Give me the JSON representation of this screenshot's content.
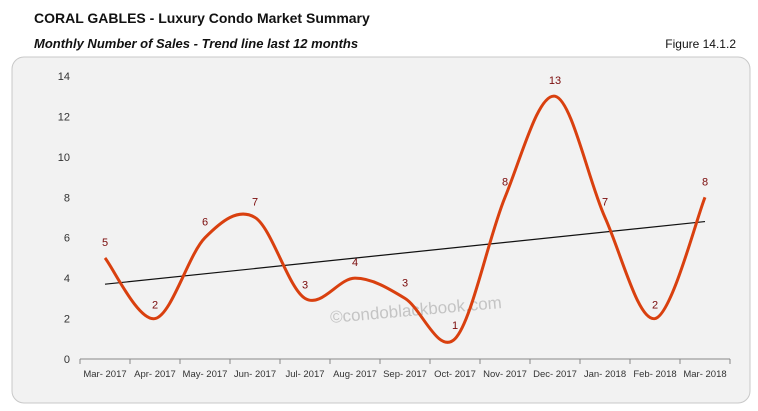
{
  "header": {
    "title": "CORAL GABLES - Luxury Condo Market Summary",
    "subtitle": "Monthly Number of Sales - Trend line last 12 months",
    "figure": "Figure 14.1.2"
  },
  "watermark": "©condoblackbook.com",
  "chart_data": {
    "type": "line",
    "categories": [
      "Mar- 2017",
      "Apr- 2017",
      "May- 2017",
      "Jun- 2017",
      "Jul- 2017",
      "Aug- 2017",
      "Sep- 2017",
      "Oct- 2017",
      "Nov- 2017",
      "Dec- 2017",
      "Jan- 2018",
      "Feb- 2018",
      "Mar- 2018"
    ],
    "values": [
      5,
      2,
      6,
      7,
      3,
      4,
      3,
      1,
      8,
      13,
      7,
      2,
      8
    ],
    "trendline": [
      3.7,
      6.8
    ],
    "ylim": [
      0,
      14
    ],
    "yticks": [
      0,
      2,
      4,
      6,
      8,
      10,
      12,
      14
    ],
    "grid": false,
    "series_color": "#d9400f",
    "label_color": "#7a0a0a",
    "trend_color": "#111111"
  }
}
